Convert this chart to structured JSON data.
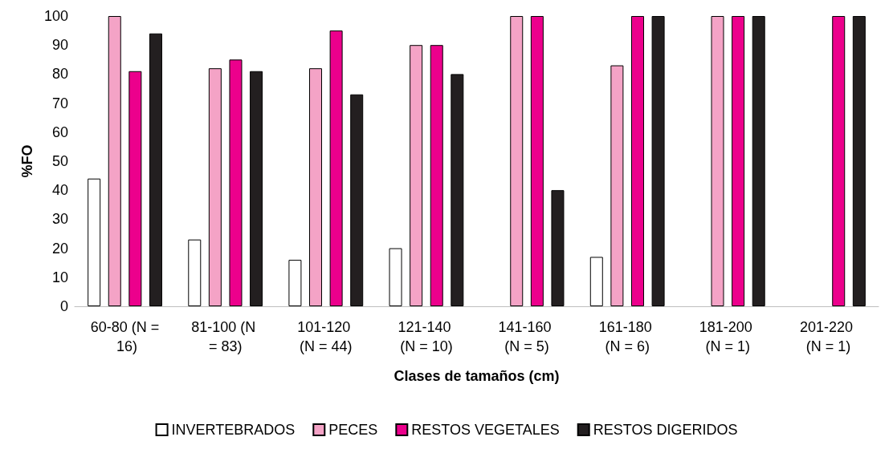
{
  "chart_data": {
    "type": "bar",
    "xlabel": "Clases de tamaños (cm)",
    "ylabel": "%FO",
    "categories": [
      "60-80 (N = 16)",
      "81-100 (N = 83)",
      "101-120 (N = 44)",
      "121-140 (N = 10)",
      "141-160 (N = 5)",
      "161-180 (N = 6)",
      "181-200 (N = 1)",
      "201-220 (N = 1)"
    ],
    "series": [
      {
        "name": "INVERTEBRADOS",
        "color": "#ffffff",
        "values": [
          44,
          23,
          16,
          20,
          null,
          17,
          null,
          null
        ]
      },
      {
        "name": "PECES",
        "color": "#f4a3c6",
        "values": [
          100,
          82,
          82,
          90,
          100,
          83,
          100,
          null
        ]
      },
      {
        "name": "RESTOS VEGETALES",
        "color": "#ec008c",
        "values": [
          81,
          85,
          95,
          90,
          100,
          100,
          100,
          100
        ]
      },
      {
        "name": "RESTOS DIGERIDOS",
        "color": "#231f20",
        "values": [
          94,
          81,
          73,
          80,
          40,
          100,
          100,
          100
        ]
      }
    ],
    "ylim": [
      0,
      100
    ],
    "yticks": [
      0,
      10,
      20,
      30,
      40,
      50,
      60,
      70,
      80,
      90,
      100
    ],
    "grid": false,
    "legend": "bottom"
  }
}
